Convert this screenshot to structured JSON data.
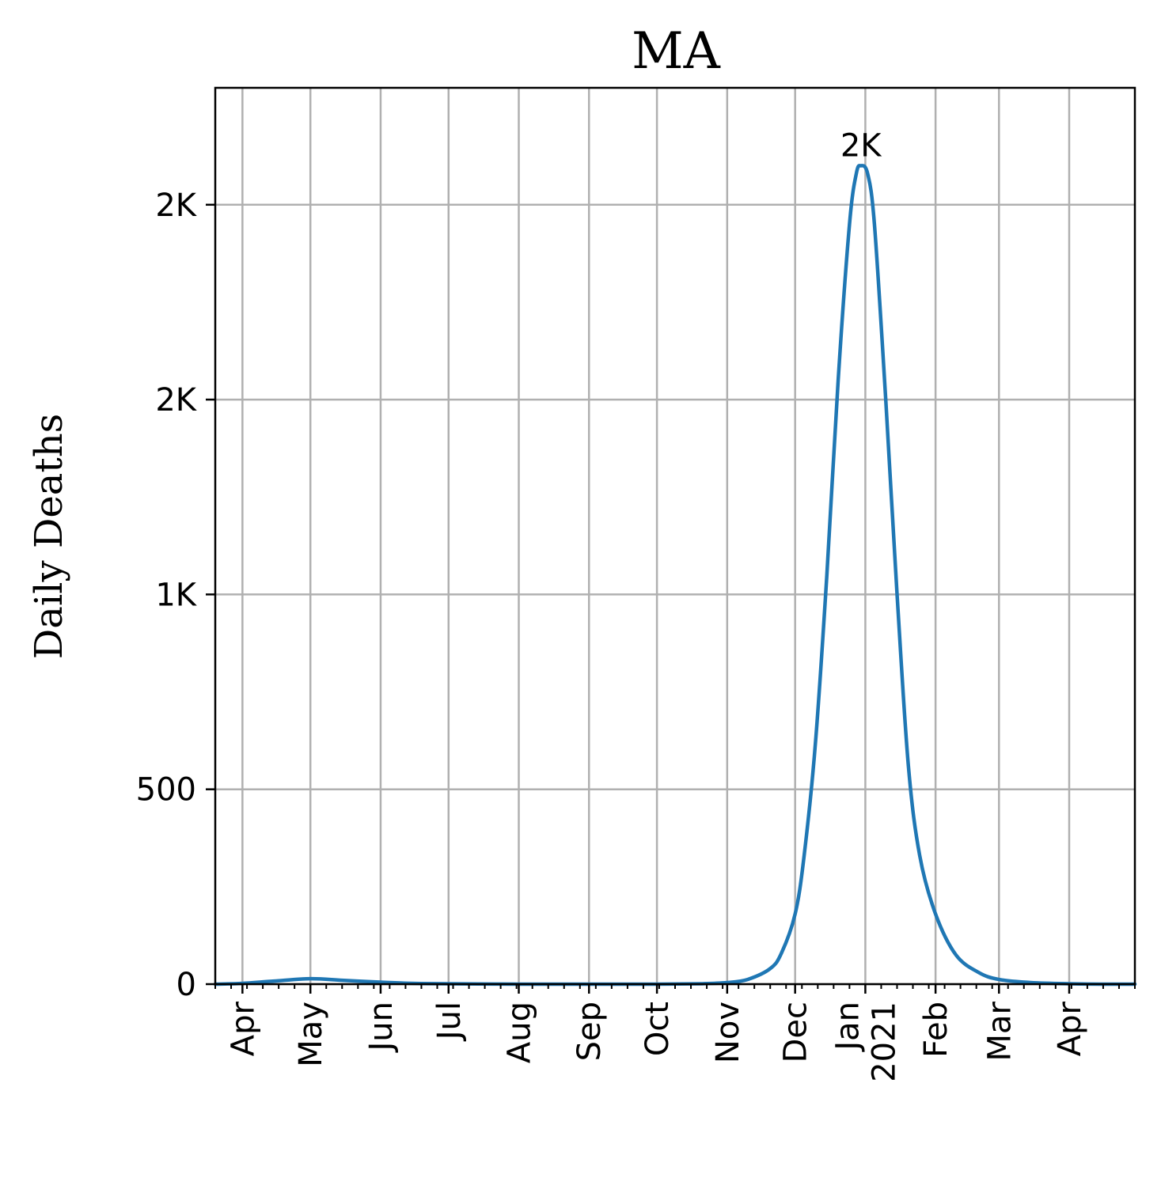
{
  "chart_data": {
    "type": "line",
    "title": "MA",
    "xlabel": "",
    "ylabel": "Daily Deaths",
    "grid": true,
    "legend": "none",
    "line_color": "#1f77b4",
    "xlim": [
      "2020-03-20",
      "2021-04-30"
    ],
    "ylim": [
      0,
      2300
    ],
    "x_ticks": [
      {
        "date": "2020-04-01",
        "label": "Apr"
      },
      {
        "date": "2020-05-01",
        "label": "May"
      },
      {
        "date": "2020-06-01",
        "label": "Jun"
      },
      {
        "date": "2020-07-01",
        "label": "Jul"
      },
      {
        "date": "2020-08-01",
        "label": "Aug"
      },
      {
        "date": "2020-09-01",
        "label": "Sep"
      },
      {
        "date": "2020-10-01",
        "label": "Oct"
      },
      {
        "date": "2020-11-01",
        "label": "Nov"
      },
      {
        "date": "2020-12-01",
        "label": "Dec"
      },
      {
        "date": "2021-01-01",
        "label": "Jan\n2021"
      },
      {
        "date": "2021-02-01",
        "label": "Feb"
      },
      {
        "date": "2021-03-01",
        "label": "Mar"
      },
      {
        "date": "2021-04-01",
        "label": "Apr"
      }
    ],
    "y_ticks": [
      {
        "value": 0,
        "label": "0"
      },
      {
        "value": 500,
        "label": "500"
      },
      {
        "value": 1000,
        "label": "1K"
      },
      {
        "value": 1500,
        "label": "2K"
      },
      {
        "value": 2000,
        "label": "2K"
      }
    ],
    "annotations": [
      {
        "date": "2020-12-30",
        "value": 2100,
        "text": "2K"
      }
    ],
    "series": [
      {
        "x": [
          "2020-03-20",
          "2020-04-01",
          "2020-04-15",
          "2020-05-01",
          "2020-05-15",
          "2020-06-01",
          "2020-06-15",
          "2020-07-01",
          "2020-08-01",
          "2020-09-01",
          "2020-10-01",
          "2020-10-20",
          "2020-11-01",
          "2020-11-10",
          "2020-11-20",
          "2020-11-25",
          "2020-12-01",
          "2020-12-05",
          "2020-12-10",
          "2020-12-15",
          "2020-12-20",
          "2020-12-25",
          "2020-12-28",
          "2020-12-30",
          "2021-01-02",
          "2021-01-05",
          "2021-01-10",
          "2021-01-15",
          "2021-01-20",
          "2021-01-25",
          "2021-02-01",
          "2021-02-10",
          "2021-02-20",
          "2021-03-01",
          "2021-03-15",
          "2021-04-01",
          "2021-04-15",
          "2021-04-30"
        ],
        "y": [
          0,
          2,
          8,
          14,
          10,
          5,
          2,
          1,
          0,
          0,
          0,
          1,
          4,
          12,
          40,
          80,
          180,
          330,
          620,
          1050,
          1550,
          1950,
          2080,
          2100,
          2080,
          1950,
          1500,
          1000,
          560,
          330,
          180,
          75,
          30,
          12,
          4,
          1,
          0,
          0
        ]
      }
    ]
  }
}
